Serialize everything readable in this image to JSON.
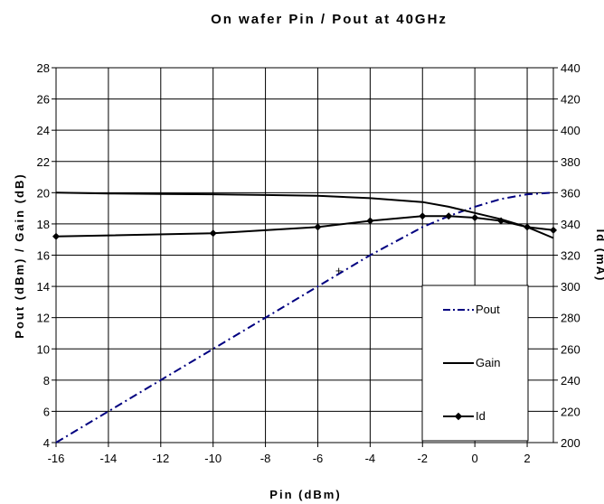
{
  "chart_data": {
    "type": "line",
    "title": "On wafer Pin / Pout at 40GHz",
    "xlabel": "Pin (dBm)",
    "ylabel": "Pout (dBm) / Gain (dB)",
    "y2label": "Id (mA)",
    "xlim": [
      -16,
      3
    ],
    "ylim": [
      4,
      28
    ],
    "y2lim": [
      200,
      440
    ],
    "x_ticks": [
      -16,
      -14,
      -12,
      -10,
      -8,
      -6,
      -4,
      -2,
      0,
      2
    ],
    "y_ticks": [
      4,
      6,
      8,
      10,
      12,
      14,
      16,
      18,
      20,
      22,
      24,
      26,
      28
    ],
    "y2_ticks": [
      200,
      220,
      240,
      260,
      280,
      300,
      320,
      340,
      360,
      380,
      400,
      420,
      440
    ],
    "grid": true,
    "legend_position": "bottom-right",
    "series": [
      {
        "name": "Pout",
        "axis": "left",
        "color": "#000080",
        "style": "dash-dot",
        "marker": "none",
        "x": [
          -16,
          -14,
          -12,
          -10,
          -8,
          -6,
          -4,
          -2,
          -1,
          0,
          1,
          2,
          3
        ],
        "y": [
          4,
          6,
          8,
          10,
          12,
          14,
          16,
          17.8,
          18.5,
          19.1,
          19.6,
          19.9,
          20
        ]
      },
      {
        "name": "Gain",
        "axis": "left",
        "color": "#000000",
        "style": "solid",
        "marker": "none",
        "x": [
          -16,
          -14,
          -12,
          -10,
          -8,
          -6,
          -4,
          -2,
          -1,
          0,
          1,
          2,
          3
        ],
        "y": [
          20,
          19.95,
          19.92,
          19.9,
          19.85,
          19.8,
          19.65,
          19.4,
          19.1,
          18.7,
          18.3,
          17.8,
          17.1
        ]
      },
      {
        "name": "Id",
        "axis": "right",
        "color": "#000000",
        "style": "solid",
        "marker": "diamond",
        "x": [
          -16,
          -10,
          -6,
          -4,
          -2,
          -1,
          0,
          1,
          2,
          3
        ],
        "y": [
          332,
          334,
          338,
          342,
          345,
          345,
          344,
          342,
          338,
          336
        ]
      }
    ],
    "annotations": [
      {
        "text": "+",
        "x": -5.2,
        "y": 15
      }
    ]
  }
}
